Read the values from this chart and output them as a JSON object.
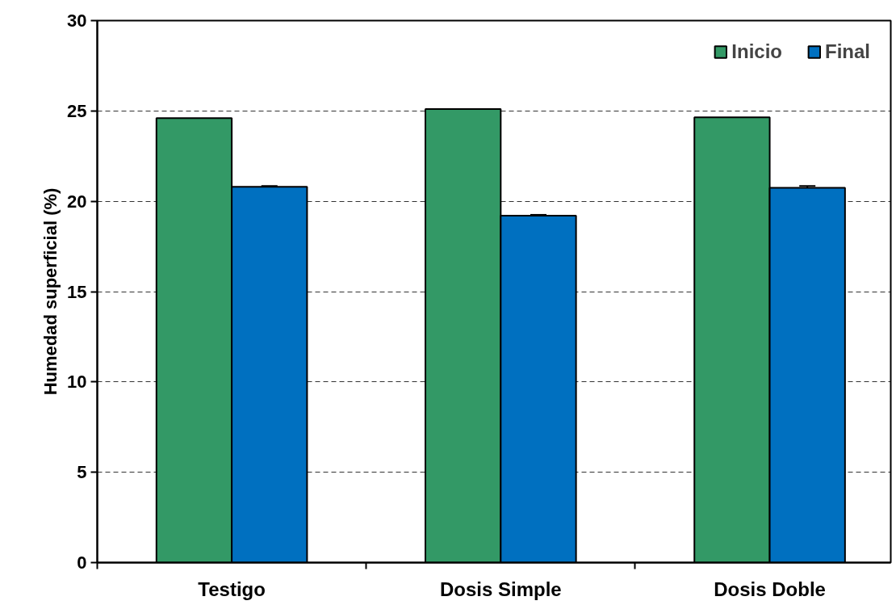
{
  "chart_data": {
    "type": "bar",
    "ylabel": "Humedad superficial (%)",
    "categories": [
      "Testigo",
      "Dosis Simple",
      "Dosis Doble"
    ],
    "series": [
      {
        "name": "Inicio",
        "color": "#339966",
        "values": [
          24.6,
          25.1,
          24.65
        ]
      },
      {
        "name": "Final",
        "color": "#0070c0",
        "values": [
          20.8,
          19.2,
          20.75
        ],
        "errors": [
          0.05,
          0.05,
          0.1
        ]
      }
    ],
    "ylim": [
      0,
      30
    ],
    "yticks": [
      0,
      5,
      10,
      15,
      20,
      25,
      30
    ],
    "grid": "y",
    "legend": "top right"
  }
}
